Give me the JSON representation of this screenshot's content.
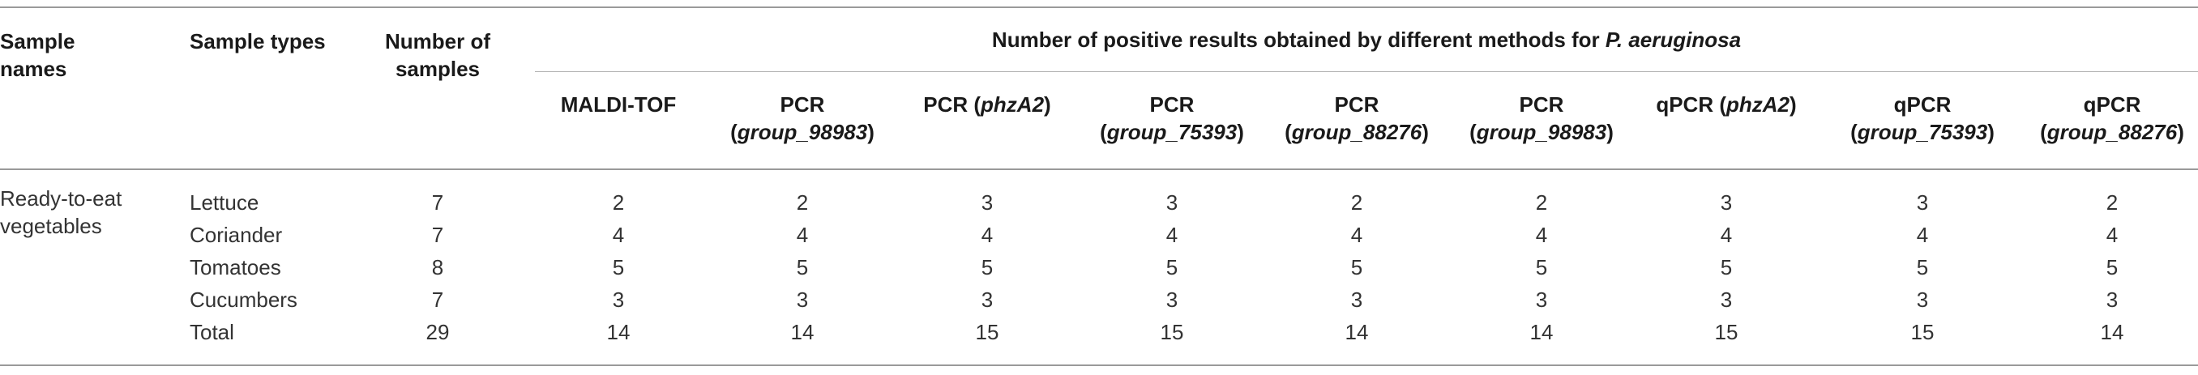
{
  "table": {
    "headers": {
      "sample_names": [
        "Sample",
        "names"
      ],
      "sample_types": "Sample types",
      "number_of_samples": [
        "Number of",
        "samples"
      ],
      "spanner": {
        "text": "Number of positive results obtained by different methods for ",
        "organism": "P. aeruginosa"
      },
      "methods": [
        {
          "line1": "MALDI-TOF",
          "pre": "",
          "italic": "",
          "post": "",
          "line2_pre": "",
          "line2_italic": "",
          "line2_post": ""
        },
        {
          "line1": "PCR",
          "line2_pre": "(",
          "line2_italic": "group_98983",
          "line2_post": ")"
        },
        {
          "line1": "PCR (",
          "line1_italic": "phzA2",
          "line1_post": ")"
        },
        {
          "line1": "PCR",
          "line2_pre": "(",
          "line2_italic": "group_75393",
          "line2_post": ")"
        },
        {
          "line1": "PCR",
          "line2_pre": "(",
          "line2_italic": "group_88276",
          "line2_post": ")"
        },
        {
          "line1": "PCR",
          "line2_pre": "(",
          "line2_italic": "group_98983",
          "line2_post": ")"
        },
        {
          "line1": "qPCR (",
          "line1_italic": "phzA2",
          "line1_post": ")"
        },
        {
          "line1": "qPCR",
          "line2_pre": "(",
          "line2_italic": "group_75393",
          "line2_post": ")"
        },
        {
          "line1": "qPCR",
          "line2_pre": "(",
          "line2_italic": "group_88276",
          "line2_post": ")"
        }
      ]
    },
    "group_label": [
      "Ready-to-eat",
      "vegetables"
    ],
    "rows": [
      {
        "type": "Lettuce",
        "n": "7",
        "values": [
          "2",
          "2",
          "3",
          "3",
          "2",
          "2",
          "3",
          "3",
          "2"
        ]
      },
      {
        "type": "Coriander",
        "n": "7",
        "values": [
          "4",
          "4",
          "4",
          "4",
          "4",
          "4",
          "4",
          "4",
          "4"
        ]
      },
      {
        "type": "Tomatoes",
        "n": "8",
        "values": [
          "5",
          "5",
          "5",
          "5",
          "5",
          "5",
          "5",
          "5",
          "5"
        ]
      },
      {
        "type": "Cucumbers",
        "n": "7",
        "values": [
          "3",
          "3",
          "3",
          "3",
          "3",
          "3",
          "3",
          "3",
          "3"
        ]
      },
      {
        "type": "Total",
        "n": "29",
        "values": [
          "14",
          "14",
          "15",
          "15",
          "14",
          "14",
          "15",
          "15",
          "14"
        ]
      }
    ]
  }
}
